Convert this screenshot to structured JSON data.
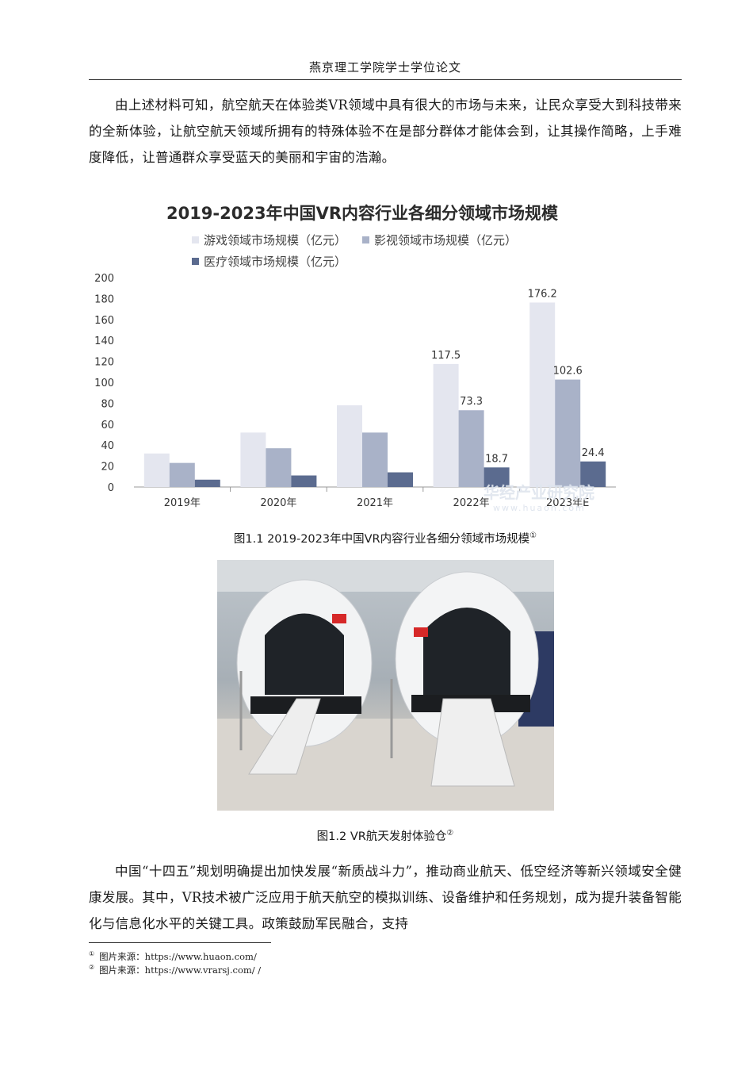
{
  "header": {
    "title": "燕京理工学院学士学位论文"
  },
  "paragraphs": {
    "p1": "由上述材料可知，航空航天在体验类VR领域中具有很大的市场与未来，让民众享受大到科技带来的全新体验，让航空航天领域所拥有的特殊体验不在是部分群体才能体会到，让其操作简略，上手难度降低，让普通群众享受蓝天的美丽和宇宙的浩瀚。",
    "p2": "中国“十四五”规划明确提出加快发展“新质战斗力”，推动商业航天、低空经济等新兴领域安全健康发展。其中，VR技术被广泛应用于航天航空的模拟训练、设备维护和任务规划，成为提升装备智能化与信息化水平的关键工具。政策鼓励军民融合，支持"
  },
  "chart_data": {
    "type": "bar",
    "title": "2019-2023年中国VR内容行业各细分领域市场规模",
    "categories": [
      "2019年",
      "2020年",
      "2021年",
      "2022年",
      "2023年E"
    ],
    "series": [
      {
        "name": "游戏领域市场规模（亿元）",
        "color": "#e4e6ef",
        "values": [
          32,
          52,
          78,
          117.5,
          176.2
        ],
        "labels": [
          "",
          "",
          "",
          "117.5",
          "176.2"
        ]
      },
      {
        "name": "影视领域市场规模（亿元）",
        "color": "#a9b2c8",
        "values": [
          23,
          37,
          52,
          73.3,
          102.6
        ],
        "labels": [
          "",
          "",
          "",
          "73.3",
          "102.6"
        ]
      },
      {
        "name": "医疗领域市场规模（亿元）",
        "color": "#5b6b8f",
        "values": [
          7,
          11,
          14,
          18.7,
          24.4
        ],
        "labels": [
          "",
          "",
          "",
          "18.7",
          "24.4"
        ]
      }
    ],
    "ylim": [
      0,
      200
    ],
    "yticks": [
      0,
      20,
      40,
      60,
      80,
      100,
      120,
      140,
      160,
      180,
      200
    ],
    "legend": "top-left",
    "grid": false,
    "watermark": {
      "text": "华经产业研究院",
      "sub": "www.huaon.com"
    }
  },
  "figure1": {
    "caption": "图1.1 2019-2023年中国VR内容行业各细分领域市场规模",
    "mark": "①"
  },
  "figure2": {
    "caption": "图1.2 VR航天发射体验仓",
    "mark": "②"
  },
  "footnotes": [
    {
      "mark": "①",
      "text": "图片来源：https://www.huaon.com/"
    },
    {
      "mark": "②",
      "text": "图片来源：https://www.vrarsj.com/ /"
    }
  ]
}
